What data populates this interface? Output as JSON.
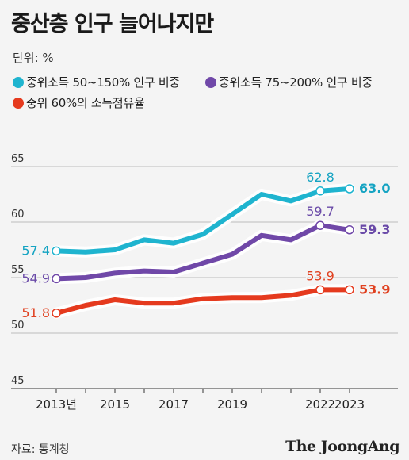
{
  "title": "중산층 인구 늘어나지만",
  "unit": "단위: %",
  "legend": [
    {
      "label": "중위소득 50~150% 인구 비중",
      "color": "#1fb4cf"
    },
    {
      "label": "중위소득 75~200% 인구 비중",
      "color": "#7048a8"
    },
    {
      "label": "중위 60%의 소득점유율",
      "color": "#e53a1e"
    }
  ],
  "source": "자료: 통계청",
  "brand": "The JoongAng",
  "chart_data": {
    "type": "line",
    "x": [
      2013,
      2014,
      2015,
      2016,
      2017,
      2018,
      2019,
      2020,
      2021,
      2022,
      2023
    ],
    "x_tick_labels": [
      {
        "x": 2013,
        "label": "2013년"
      },
      {
        "x": 2015,
        "label": "2015"
      },
      {
        "x": 2017,
        "label": "2017"
      },
      {
        "x": 2019,
        "label": "2019"
      },
      {
        "x": 2022,
        "label": "2022"
      },
      {
        "x": 2023,
        "label": "2023"
      }
    ],
    "x_gridlines": [
      2013,
      2014,
      2015,
      2016,
      2017,
      2018,
      2019,
      2020,
      2021,
      2022,
      2023
    ],
    "ylim": [
      45,
      65
    ],
    "yticks": [
      45,
      50,
      55,
      60,
      65
    ],
    "series": [
      {
        "name": "중위소득 50~150% 인구 비중",
        "color": "#1fb4cf",
        "label_color": "#14a3c2",
        "values": [
          57.4,
          57.3,
          57.5,
          58.4,
          58.1,
          58.9,
          60.7,
          62.5,
          61.9,
          62.8,
          63.0
        ],
        "labels": [
          {
            "x": 2013,
            "text": "57.4",
            "pos": "left",
            "bold": false
          },
          {
            "x": 2022,
            "text": "62.8",
            "pos": "above",
            "bold": false
          },
          {
            "x": 2023,
            "text": "63.0",
            "pos": "right",
            "bold": true
          }
        ]
      },
      {
        "name": "중위소득 75~200% 인구 비중",
        "color": "#7048a8",
        "label_color": "#6a4aa8",
        "values": [
          54.9,
          55.0,
          55.4,
          55.6,
          55.5,
          56.3,
          57.1,
          58.8,
          58.4,
          59.7,
          59.3
        ],
        "labels": [
          {
            "x": 2013,
            "text": "54.9",
            "pos": "left",
            "bold": false
          },
          {
            "x": 2022,
            "text": "59.7",
            "pos": "above",
            "bold": false
          },
          {
            "x": 2023,
            "text": "59.3",
            "pos": "right",
            "bold": true
          }
        ]
      },
      {
        "name": "중위 60%의 소득점유율",
        "color": "#e53a1e",
        "label_color": "#e0401f",
        "values": [
          51.8,
          52.5,
          53.0,
          52.7,
          52.7,
          53.1,
          53.2,
          53.2,
          53.4,
          53.9,
          53.9
        ],
        "labels": [
          {
            "x": 2013,
            "text": "51.8",
            "pos": "left",
            "bold": false
          },
          {
            "x": 2022,
            "text": "53.9",
            "pos": "above",
            "bold": false
          },
          {
            "x": 2023,
            "text": "53.9",
            "pos": "right",
            "bold": true
          }
        ]
      }
    ]
  }
}
